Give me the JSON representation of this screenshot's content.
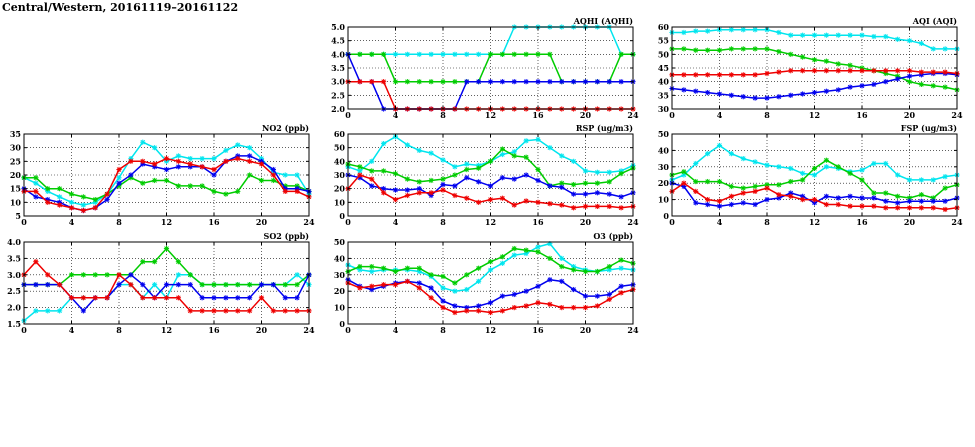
{
  "page": {
    "title": "Central/Western, 20161119–20161122"
  },
  "chart_data": [
    {
      "id": "aqhi",
      "type": "line",
      "title": "AQHI (AQHI)",
      "x": [
        0,
        1,
        2,
        3,
        4,
        5,
        6,
        7,
        8,
        9,
        10,
        11,
        12,
        13,
        14,
        15,
        16,
        17,
        18,
        19,
        20,
        21,
        22,
        23,
        24
      ],
      "xlim": [
        0,
        24
      ],
      "xticks": [
        "0",
        "4",
        "8",
        "12",
        "16",
        "20",
        "24"
      ],
      "ylim": [
        2,
        5
      ],
      "yticks": [
        "2.0",
        "2.5",
        "3.0",
        "3.5",
        "4.0",
        "4.5",
        "5.0"
      ],
      "grid": true,
      "series": [
        {
          "color": "#00e5ee",
          "values": [
            4,
            4,
            4,
            4,
            4,
            4,
            4,
            4,
            4,
            4,
            4,
            4,
            4,
            4,
            5,
            5,
            5,
            5,
            5,
            5,
            5,
            5,
            5,
            4,
            4
          ]
        },
        {
          "color": "#00cc00",
          "values": [
            4,
            4,
            4,
            4,
            3,
            3,
            3,
            3,
            3,
            3,
            3,
            3,
            4,
            4,
            4,
            4,
            4,
            4,
            3,
            3,
            3,
            3,
            3,
            4,
            4
          ]
        },
        {
          "color": "#0000ee",
          "values": [
            4,
            3,
            3,
            2,
            2,
            2,
            2,
            2,
            2,
            2,
            3,
            3,
            3,
            3,
            3,
            3,
            3,
            3,
            3,
            3,
            3,
            3,
            3,
            3,
            3
          ]
        },
        {
          "color": "#ee0000",
          "values": [
            3,
            3,
            3,
            3,
            2,
            2,
            2,
            2,
            2,
            2,
            2,
            2,
            2,
            2,
            2,
            2,
            2,
            2,
            2,
            2,
            2,
            2,
            2,
            2,
            2
          ]
        }
      ]
    },
    {
      "id": "aqi",
      "type": "line",
      "title": "AQI (AQI)",
      "x": [
        0,
        1,
        2,
        3,
        4,
        5,
        6,
        7,
        8,
        9,
        10,
        11,
        12,
        13,
        14,
        15,
        16,
        17,
        18,
        19,
        20,
        21,
        22,
        23,
        24
      ],
      "xlim": [
        0,
        24
      ],
      "xticks": [
        "0",
        "4",
        "8",
        "12",
        "16",
        "20",
        "24"
      ],
      "ylim": [
        30,
        60
      ],
      "yticks": [
        "30",
        "35",
        "40",
        "45",
        "50",
        "55",
        "60"
      ],
      "grid": true,
      "series": [
        {
          "color": "#00e5ee",
          "values": [
            58,
            58,
            58.5,
            58.5,
            59,
            59,
            59,
            59,
            59,
            58,
            57,
            57,
            57,
            57,
            57,
            57,
            57,
            56.5,
            56.5,
            55.5,
            55,
            54,
            52,
            52,
            52
          ]
        },
        {
          "color": "#00cc00",
          "values": [
            52,
            52,
            51.5,
            51.5,
            51.5,
            52,
            52,
            52,
            52,
            51,
            50,
            49,
            48,
            47.5,
            46.5,
            46,
            45,
            44,
            43,
            42,
            40,
            39,
            38.5,
            38,
            37
          ]
        },
        {
          "color": "#0000ee",
          "values": [
            37.5,
            37,
            36.5,
            36,
            35.5,
            35,
            34.5,
            34,
            34,
            34.5,
            35,
            35.5,
            36,
            36.5,
            37,
            38,
            38.5,
            39,
            40,
            41,
            42,
            42.5,
            43,
            43,
            42.5
          ]
        },
        {
          "color": "#ee0000",
          "values": [
            42.5,
            42.5,
            42.5,
            42.5,
            42.5,
            42.5,
            42.5,
            42.5,
            43,
            43.5,
            44,
            44,
            44,
            44,
            44,
            44,
            44,
            44,
            44,
            44,
            44,
            43.5,
            43.5,
            43.5,
            43
          ]
        }
      ]
    },
    {
      "id": "no2",
      "type": "line",
      "title": "NO2 (ppb)",
      "x": [
        0,
        1,
        2,
        3,
        4,
        5,
        6,
        7,
        8,
        9,
        10,
        11,
        12,
        13,
        14,
        15,
        16,
        17,
        18,
        19,
        20,
        21,
        22,
        23,
        24
      ],
      "xlim": [
        0,
        24
      ],
      "xticks": [
        "0",
        "4",
        "8",
        "12",
        "16",
        "20",
        "24"
      ],
      "ylim": [
        5,
        35
      ],
      "yticks": [
        "5",
        "10",
        "15",
        "20",
        "25",
        "30",
        "35"
      ],
      "grid": true,
      "series": [
        {
          "color": "#00e5ee",
          "values": [
            19,
            17,
            14,
            12,
            10,
            9,
            10,
            13,
            19,
            26,
            32,
            30,
            25,
            27,
            26,
            26,
            26,
            29,
            31,
            30,
            26,
            21,
            20,
            20,
            13
          ]
        },
        {
          "color": "#00cc00",
          "values": [
            19,
            19,
            15,
            15,
            13,
            12,
            11,
            13,
            16,
            19,
            17,
            18,
            18,
            16,
            16,
            16,
            14,
            13,
            14,
            20,
            18,
            18,
            16,
            16,
            14
          ]
        },
        {
          "color": "#0000ee",
          "values": [
            15,
            12,
            11,
            10,
            8,
            7,
            8,
            11,
            17,
            20,
            24,
            23,
            22,
            23,
            23,
            23,
            20,
            25,
            27,
            27,
            25,
            22,
            15,
            15,
            14
          ]
        },
        {
          "color": "#ee0000",
          "values": [
            14,
            14,
            10,
            9,
            8,
            7,
            8,
            13,
            22,
            25,
            25,
            24,
            26,
            25,
            24,
            23,
            22,
            25,
            26,
            25,
            24,
            20,
            14,
            14,
            12
          ]
        }
      ]
    },
    {
      "id": "rsp",
      "type": "line",
      "title": "RSP (ug/m3)",
      "x": [
        0,
        1,
        2,
        3,
        4,
        5,
        6,
        7,
        8,
        9,
        10,
        11,
        12,
        13,
        14,
        15,
        16,
        17,
        18,
        19,
        20,
        21,
        22,
        23,
        24
      ],
      "xlim": [
        0,
        24
      ],
      "xticks": [
        "0",
        "4",
        "8",
        "12",
        "16",
        "20",
        "24"
      ],
      "ylim": [
        0,
        60
      ],
      "yticks": [
        "0",
        "10",
        "20",
        "30",
        "40",
        "50",
        "60"
      ],
      "grid": true,
      "series": [
        {
          "color": "#00e5ee",
          "values": [
            36,
            33,
            40,
            53,
            58,
            52,
            48,
            46,
            41,
            36,
            38,
            37,
            40,
            45,
            47,
            55,
            56,
            50,
            44,
            40,
            33,
            32,
            32,
            33,
            37
          ]
        },
        {
          "color": "#00cc00",
          "values": [
            38,
            36,
            33,
            33,
            31,
            27,
            25,
            26,
            27,
            30,
            34,
            35,
            40,
            49,
            44,
            43,
            34,
            22,
            24,
            23,
            24,
            24,
            25,
            31,
            35
          ]
        },
        {
          "color": "#0000ee",
          "values": [
            30,
            28,
            22,
            20,
            19,
            19,
            20,
            15,
            23,
            22,
            28,
            25,
            22,
            28,
            27,
            30,
            26,
            22,
            21,
            16,
            16,
            17,
            16,
            14,
            17
          ]
        },
        {
          "color": "#ee0000",
          "values": [
            20,
            30,
            27,
            17,
            12,
            15,
            17,
            17,
            19,
            15,
            13,
            10,
            12,
            13,
            8,
            11,
            10,
            9,
            8,
            6,
            7,
            7,
            7,
            6,
            7
          ]
        }
      ]
    },
    {
      "id": "fsp",
      "type": "line",
      "title": "FSP (ug/m3)",
      "x": [
        0,
        1,
        2,
        3,
        4,
        5,
        6,
        7,
        8,
        9,
        10,
        11,
        12,
        13,
        14,
        15,
        16,
        17,
        18,
        19,
        20,
        21,
        22,
        23,
        24
      ],
      "xlim": [
        0,
        24
      ],
      "xticks": [
        "0",
        "4",
        "8",
        "12",
        "16",
        "20",
        "24"
      ],
      "ylim": [
        0,
        50
      ],
      "yticks": [
        "0",
        "10",
        "20",
        "30",
        "40",
        "50"
      ],
      "grid": true,
      "series": [
        {
          "color": "#00e5ee",
          "values": [
            22,
            25,
            32,
            38,
            43,
            38,
            35,
            33,
            31,
            30,
            29,
            26,
            25,
            30,
            29,
            27,
            28,
            32,
            32,
            25,
            22,
            22,
            22,
            24,
            25
          ]
        },
        {
          "color": "#00cc00",
          "values": [
            25,
            27,
            21,
            21,
            21,
            18,
            17,
            18,
            19,
            19,
            21,
            22,
            29,
            34,
            30,
            26,
            22,
            14,
            14,
            12,
            11,
            13,
            11,
            17,
            19
          ]
        },
        {
          "color": "#0000ee",
          "values": [
            20,
            18,
            8,
            7,
            6,
            7,
            8,
            7,
            10,
            11,
            14,
            12,
            8,
            12,
            11,
            12,
            11,
            11,
            9,
            8,
            9,
            9,
            9,
            9,
            11
          ]
        },
        {
          "color": "#ee0000",
          "values": [
            15,
            20,
            15,
            10,
            9,
            12,
            14,
            15,
            17,
            13,
            12,
            10,
            10,
            7,
            7,
            6,
            6,
            6,
            5,
            5,
            5,
            5,
            5,
            4,
            5
          ]
        }
      ]
    },
    {
      "id": "so2",
      "type": "line",
      "title": "SO2 (ppb)",
      "x": [
        0,
        1,
        2,
        3,
        4,
        5,
        6,
        7,
        8,
        9,
        10,
        11,
        12,
        13,
        14,
        15,
        16,
        17,
        18,
        19,
        20,
        21,
        22,
        23,
        24
      ],
      "xlim": [
        0,
        24
      ],
      "xticks": [
        "0",
        "4",
        "8",
        "12",
        "16",
        "20",
        "24"
      ],
      "ylim": [
        1.5,
        4.0
      ],
      "yticks": [
        "1.5",
        "2.0",
        "2.5",
        "3.0",
        "3.5",
        "4.0"
      ],
      "grid": true,
      "series": [
        {
          "color": "#00e5ee",
          "values": [
            1.6,
            1.9,
            1.9,
            1.9,
            2.3,
            2.3,
            2.3,
            2.3,
            2.7,
            2.7,
            2.3,
            2.7,
            2.3,
            3.0,
            3.0,
            2.7,
            2.7,
            2.7,
            2.7,
            2.7,
            2.7,
            2.7,
            2.7,
            3.0,
            2.7
          ]
        },
        {
          "color": "#00cc00",
          "values": [
            2.7,
            2.7,
            2.7,
            2.7,
            3.0,
            3.0,
            3.0,
            3.0,
            3.0,
            3.0,
            3.4,
            3.4,
            3.8,
            3.4,
            3.0,
            2.7,
            2.7,
            2.7,
            2.7,
            2.7,
            2.7,
            2.7,
            2.7,
            2.7,
            3.0
          ]
        },
        {
          "color": "#0000ee",
          "values": [
            2.7,
            2.7,
            2.7,
            2.7,
            2.3,
            1.9,
            2.3,
            2.3,
            2.7,
            3.0,
            2.7,
            2.3,
            2.7,
            2.7,
            2.7,
            2.3,
            2.3,
            2.3,
            2.3,
            2.3,
            2.7,
            2.7,
            2.3,
            2.3,
            3.0
          ]
        },
        {
          "color": "#ee0000",
          "values": [
            3.0,
            3.4,
            3.0,
            2.7,
            2.3,
            2.3,
            2.3,
            2.3,
            3.0,
            2.7,
            2.3,
            2.3,
            2.3,
            2.3,
            1.9,
            1.9,
            1.9,
            1.9,
            1.9,
            1.9,
            2.3,
            1.9,
            1.9,
            1.9,
            1.9
          ]
        }
      ]
    },
    {
      "id": "o3",
      "type": "line",
      "title": "O3 (ppb)",
      "x": [
        0,
        1,
        2,
        3,
        4,
        5,
        6,
        7,
        8,
        9,
        10,
        11,
        12,
        13,
        14,
        15,
        16,
        17,
        18,
        19,
        20,
        21,
        22,
        23,
        24
      ],
      "xlim": [
        0,
        24
      ],
      "xticks": [
        "0",
        "4",
        "8",
        "12",
        "16",
        "20",
        "24"
      ],
      "ylim": [
        0,
        50
      ],
      "yticks": [
        "0",
        "10",
        "20",
        "30",
        "40",
        "50"
      ],
      "grid": true,
      "series": [
        {
          "color": "#00e5ee",
          "values": [
            36,
            33,
            32,
            33,
            33,
            33,
            32,
            29,
            22,
            20,
            21,
            26,
            33,
            37,
            42,
            43,
            47,
            49,
            40,
            35,
            33,
            32,
            33,
            34,
            33
          ]
        },
        {
          "color": "#00cc00",
          "values": [
            32,
            35,
            35,
            34,
            32,
            34,
            34,
            30,
            29,
            25,
            30,
            34,
            38,
            41,
            46,
            45,
            44,
            40,
            35,
            33,
            32,
            32,
            35,
            39,
            37
          ]
        },
        {
          "color": "#0000ee",
          "values": [
            27,
            23,
            21,
            23,
            25,
            26,
            25,
            22,
            14,
            11,
            10,
            11,
            13,
            17,
            18,
            20,
            23,
            27,
            26,
            21,
            17,
            17,
            18,
            23,
            24
          ]
        },
        {
          "color": "#ee0000",
          "values": [
            25,
            22,
            23,
            24,
            24,
            26,
            22,
            16,
            10,
            7,
            8,
            8,
            7,
            8,
            10,
            11,
            13,
            12,
            10,
            10,
            10,
            11,
            15,
            19,
            21
          ]
        }
      ]
    }
  ]
}
